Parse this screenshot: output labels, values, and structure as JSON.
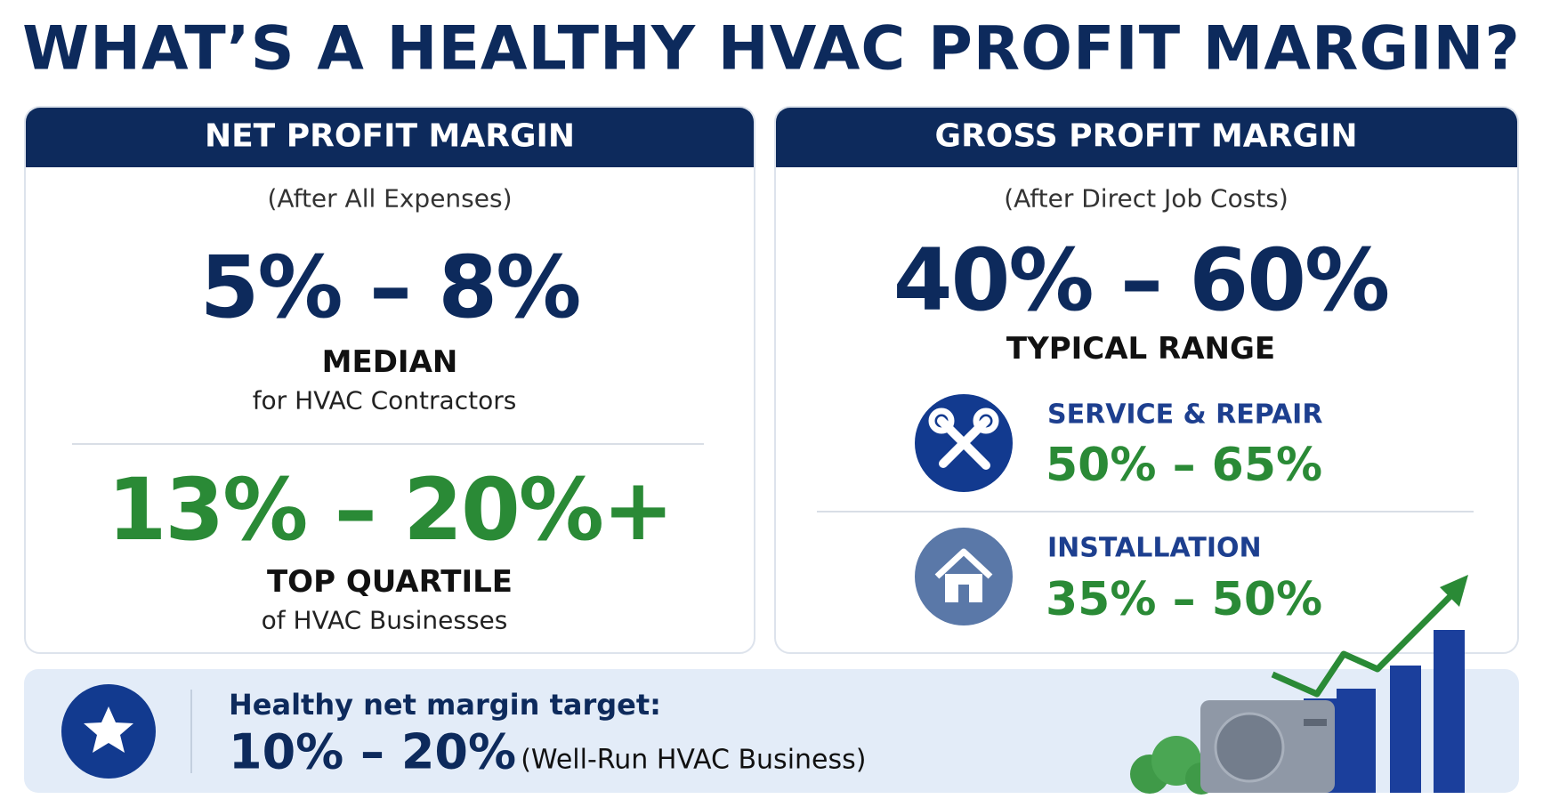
{
  "title": "WHAT’S A HEALTHY HVAC PROFIT MARGIN?",
  "net_profit": {
    "header": "NET PROFIT MARGIN",
    "subtitle": "(After All Expenses)",
    "median": {
      "range": "5% – 8%",
      "label": "MEDIAN",
      "note": "for HVAC Contractors"
    },
    "top_quartile": {
      "range": "13% – 20%+",
      "label": "TOP QUARTILE",
      "note": "of HVAC Businesses"
    }
  },
  "gross_profit": {
    "header": "GROSS PROFIT MARGIN",
    "subtitle": "(After Direct Job Costs)",
    "range": "40% – 60%",
    "label": "TYPICAL RANGE",
    "segments": [
      {
        "label": "SERVICE & REPAIR",
        "range": "50% – 65%"
      },
      {
        "label": "INSTALLATION",
        "range": "35% – 50%"
      }
    ]
  },
  "target": {
    "label": "Healthy net margin target:",
    "range": "10% – 20%",
    "note": "(Well-Run HVAC Business)"
  }
}
